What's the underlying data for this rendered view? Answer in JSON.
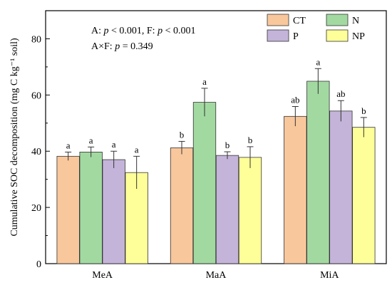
{
  "chart_data": {
    "type": "bar",
    "categories": [
      "MeA",
      "MaA",
      "MiA"
    ],
    "ylabel": "Cumulative SOC decomposition (mg C kg⁻¹ soil)",
    "xlabel": "",
    "ylim": [
      0,
      90
    ],
    "yticks": [
      0,
      20,
      40,
      60,
      80
    ],
    "legend_position": "top-right",
    "annotation_lines": [
      [
        {
          "t": "A: ",
          "i": false
        },
        {
          "t": "p",
          "i": true
        },
        {
          "t": " < 0.001,  F: ",
          "i": false
        },
        {
          "t": "p",
          "i": true
        },
        {
          "t": " < 0.001",
          "i": false
        }
      ],
      [
        {
          "t": "A×F: ",
          "i": false
        },
        {
          "t": "p",
          "i": true
        },
        {
          "t": " = 0.349",
          "i": false
        }
      ]
    ],
    "series": [
      {
        "name": "CT",
        "color": "#F9C79C",
        "values": [
          38.2,
          41.2,
          52.4
        ],
        "errors": [
          1.5,
          2.3,
          3.5
        ],
        "letters": [
          "a",
          "b",
          "ab"
        ]
      },
      {
        "name": "N",
        "color": "#A2D9A1",
        "values": [
          39.7,
          57.4,
          64.9
        ],
        "errors": [
          1.8,
          5.0,
          4.5
        ],
        "letters": [
          "a",
          "a",
          "a"
        ]
      },
      {
        "name": "P",
        "color": "#C4B4D9",
        "values": [
          37.0,
          38.5,
          54.3
        ],
        "errors": [
          3.0,
          1.3,
          3.7
        ],
        "letters": [
          "a",
          "b",
          "ab"
        ]
      },
      {
        "name": "NP",
        "color": "#FFFF99",
        "values": [
          32.4,
          37.8,
          48.5
        ],
        "errors": [
          5.8,
          3.8,
          3.5
        ],
        "letters": [
          "a",
          "b",
          "b"
        ]
      }
    ]
  }
}
